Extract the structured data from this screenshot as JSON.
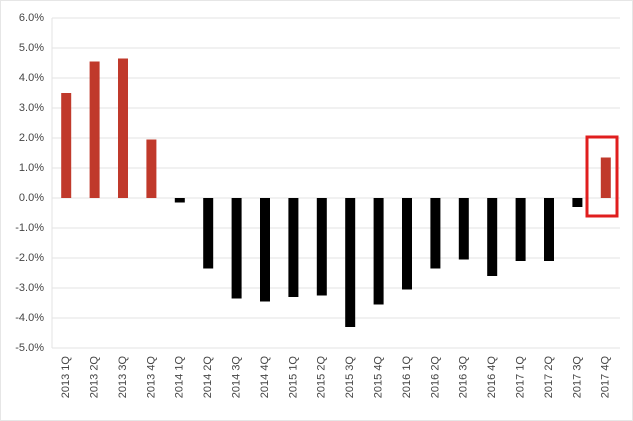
{
  "chart_data": {
    "type": "bar",
    "categories": [
      "2013 1Q",
      "2013 2Q",
      "2013 3Q",
      "2013 4Q",
      "2014 1Q",
      "2014 2Q",
      "2014 3Q",
      "2014 4Q",
      "2015 1Q",
      "2015 2Q",
      "2015 3Q",
      "2015 4Q",
      "2016 1Q",
      "2016 2Q",
      "2016 3Q",
      "2016 4Q",
      "2017 1Q",
      "2017 2Q",
      "2017 3Q",
      "2017 4Q"
    ],
    "values": [
      3.5,
      4.55,
      4.65,
      1.95,
      -0.15,
      -2.35,
      -3.35,
      -3.45,
      -3.3,
      -3.25,
      -4.3,
      -3.55,
      -3.05,
      -2.35,
      -2.05,
      -2.6,
      -2.1,
      -2.1,
      -0.3,
      1.35
    ],
    "positive_color": "#c0392b",
    "negative_color": "#000000",
    "ylim": [
      -5,
      6
    ],
    "yticks": [
      {
        "value": -5,
        "label": "-5.0%"
      },
      {
        "value": -4,
        "label": "-4.0%"
      },
      {
        "value": -3,
        "label": "-3.0%"
      },
      {
        "value": -2,
        "label": "-2.0%"
      },
      {
        "value": -1,
        "label": "-1.0%"
      },
      {
        "value": 0,
        "label": "0.0%"
      },
      {
        "value": 1,
        "label": "1.0%"
      },
      {
        "value": 2,
        "label": "2.0%"
      },
      {
        "value": 3,
        "label": "3.0%"
      },
      {
        "value": 4,
        "label": "4.0%"
      },
      {
        "value": 5,
        "label": "5.0%"
      },
      {
        "value": 6,
        "label": "6.0%"
      }
    ],
    "grid": true
  }
}
